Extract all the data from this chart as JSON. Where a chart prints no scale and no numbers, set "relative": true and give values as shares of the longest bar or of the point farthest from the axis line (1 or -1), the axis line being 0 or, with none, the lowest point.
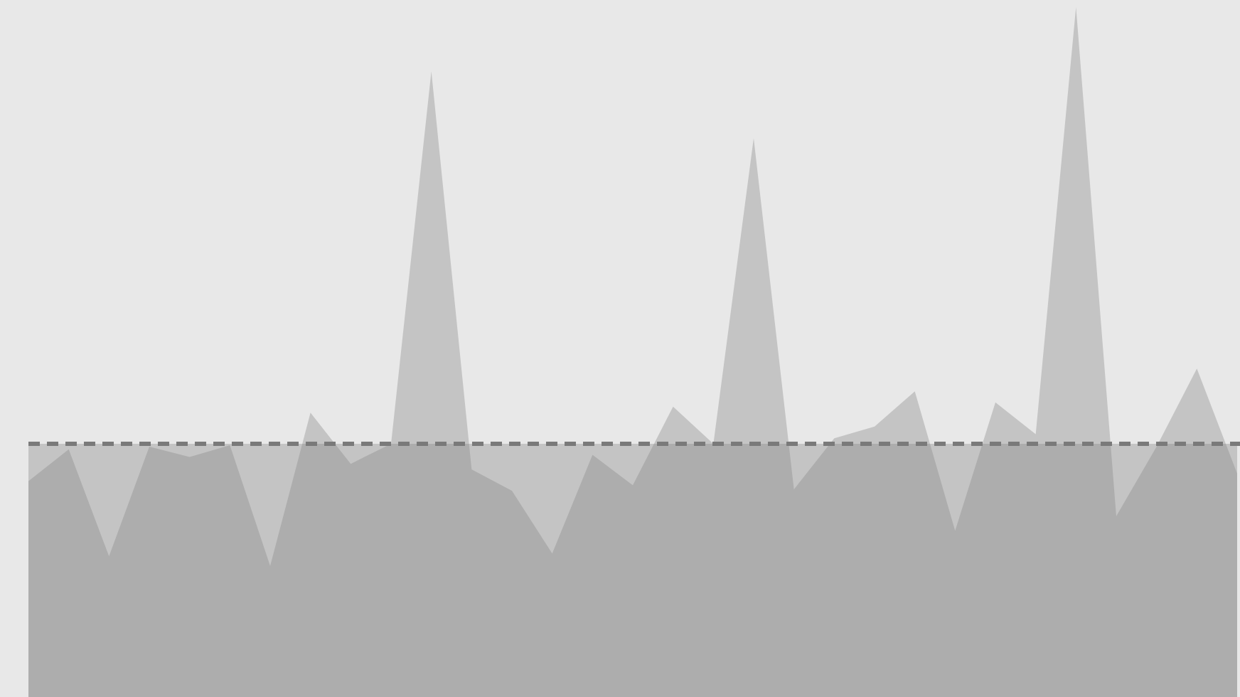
{
  "chart_data": {
    "type": "area",
    "relative": true,
    "categories": [
      null,
      null,
      null,
      null,
      null,
      null,
      null,
      null,
      null,
      null,
      null,
      null,
      null,
      null,
      null,
      null,
      null,
      null,
      null,
      null,
      null,
      null,
      null,
      null,
      null,
      null,
      null,
      null,
      null,
      null,
      null
    ],
    "series": [
      {
        "color": "#adadad",
        "values": [
          0.313,
          0.359,
          0.204,
          0.363,
          0.348,
          0.365,
          0.19,
          0.412,
          0.338,
          0.367,
          0.907,
          0.33,
          0.299,
          0.208,
          0.351,
          0.307,
          0.421,
          0.367,
          0.81,
          0.301,
          0.375,
          0.392,
          0.443,
          0.241,
          0.427,
          0.381,
          1,
          0.262,
          0.363,
          0.476,
          0.324
        ]
      }
    ],
    "ref_lines": [
      {
        "axis": "y",
        "value": 0.367,
        "color": "#7a7a7a",
        "line_style": "dashed"
      }
    ],
    "bands": [
      {
        "axis": "y",
        "from": 0,
        "to": 0.367,
        "color": "#c4c4c4"
      }
    ],
    "grid": false
  }
}
